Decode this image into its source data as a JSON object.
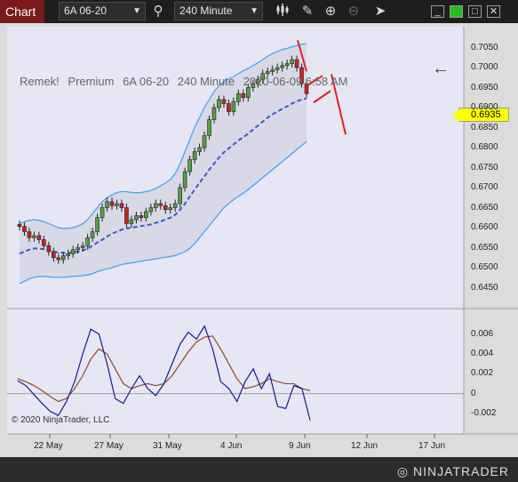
{
  "toolbar": {
    "tab_label": "Chart",
    "instrument": "6A 06-20",
    "interval": "240 Minute"
  },
  "chart": {
    "title_parts": [
      "Remek!",
      "Premium",
      "6A 06-20",
      "240 Minute",
      "2020-06-09 6:58 AM"
    ],
    "last_price": "0.6935",
    "copyright": "© 2020 NinjaTrader, LLC",
    "brand": "NINJATRADER"
  },
  "colors": {
    "background": "#e6e6f5",
    "band_fill": "#d6d6e6",
    "band_line": "#3fa0f0",
    "mid_line": "#3a5ac8",
    "candle": "#222222",
    "candle_up": "#55a040",
    "candle_down": "#cc2222",
    "osc_fast": "#1a1a8c",
    "osc_slow": "#8c4a2a",
    "projection": "#f0f0c8",
    "projection_line": "#e82020"
  },
  "chart_data": [
    {
      "type": "candlestick",
      "title": "",
      "y_ticks": [
        "0.7050",
        "0.7000",
        "0.6950",
        "0.6900",
        "0.6850",
        "0.6800",
        "0.6750",
        "0.6700",
        "0.6650",
        "0.6600",
        "0.6550",
        "0.6500",
        "0.6450"
      ],
      "ylim": [
        0.642,
        0.708
      ],
      "x_ticks": [
        "22 May",
        "27 May",
        "31 May",
        "4 Jun",
        "9 Jun",
        "12 Jun",
        "17 Jun"
      ],
      "close": [
        0.6603,
        0.659,
        0.6575,
        0.658,
        0.657,
        0.6555,
        0.654,
        0.6525,
        0.652,
        0.653,
        0.6535,
        0.6545,
        0.655,
        0.6555,
        0.6575,
        0.659,
        0.6625,
        0.665,
        0.6665,
        0.6655,
        0.666,
        0.665,
        0.661,
        0.662,
        0.663,
        0.6625,
        0.664,
        0.665,
        0.666,
        0.6655,
        0.6645,
        0.665,
        0.666,
        0.67,
        0.674,
        0.677,
        0.679,
        0.68,
        0.683,
        0.687,
        0.69,
        0.692,
        0.691,
        0.689,
        0.6915,
        0.6935,
        0.6925,
        0.695,
        0.696,
        0.697,
        0.6985,
        0.699,
        0.6995,
        0.7,
        0.7005,
        0.701,
        0.702,
        0.7,
        0.696,
        0.6935
      ],
      "upper_band": [
        0.661,
        0.6615,
        0.6618,
        0.662,
        0.6618,
        0.6615,
        0.661,
        0.6605,
        0.66,
        0.6598,
        0.6598,
        0.66,
        0.6604,
        0.661,
        0.662,
        0.6635,
        0.665,
        0.6665,
        0.6675,
        0.6682,
        0.6688,
        0.669,
        0.669,
        0.6688,
        0.6687,
        0.6688,
        0.669,
        0.6693,
        0.6698,
        0.6705,
        0.6712,
        0.672,
        0.6735,
        0.676,
        0.679,
        0.682,
        0.685,
        0.6875,
        0.69,
        0.692,
        0.694,
        0.6955,
        0.6965,
        0.6972,
        0.6978,
        0.6985,
        0.6992,
        0.6998,
        0.7005,
        0.7012,
        0.702,
        0.7028,
        0.7035,
        0.704,
        0.7045,
        0.7048,
        0.7052,
        0.7055,
        0.7058,
        0.706
      ],
      "mid_line": [
        0.6535,
        0.654,
        0.6545,
        0.6548,
        0.6548,
        0.6546,
        0.6543,
        0.654,
        0.6538,
        0.6537,
        0.6537,
        0.6538,
        0.654,
        0.6543,
        0.6548,
        0.6555,
        0.6563,
        0.657,
        0.6578,
        0.6585,
        0.659,
        0.6595,
        0.6598,
        0.66,
        0.6602,
        0.6604,
        0.6606,
        0.6608,
        0.6612,
        0.6616,
        0.662,
        0.6625,
        0.6632,
        0.6645,
        0.666,
        0.6678,
        0.6695,
        0.6712,
        0.6728,
        0.6745,
        0.676,
        0.6775,
        0.6788,
        0.6798,
        0.6808,
        0.6818,
        0.6826,
        0.6835,
        0.6845,
        0.6855,
        0.6865,
        0.6875,
        0.6883,
        0.689,
        0.6897,
        0.6903,
        0.691,
        0.6916,
        0.692,
        0.6923
      ],
      "lower_band": [
        0.646,
        0.6466,
        0.6472,
        0.6476,
        0.6478,
        0.6478,
        0.6477,
        0.6476,
        0.6476,
        0.6476,
        0.6477,
        0.6478,
        0.6479,
        0.648,
        0.6482,
        0.6485,
        0.649,
        0.6494,
        0.6497,
        0.65,
        0.6504,
        0.6508,
        0.651,
        0.6512,
        0.6514,
        0.6516,
        0.6518,
        0.652,
        0.6522,
        0.6524,
        0.6526,
        0.6528,
        0.653,
        0.6535,
        0.654,
        0.6548,
        0.656,
        0.6575,
        0.659,
        0.6605,
        0.662,
        0.6635,
        0.665,
        0.666,
        0.667,
        0.6678,
        0.6686,
        0.6695,
        0.6705,
        0.6715,
        0.6725,
        0.6735,
        0.6745,
        0.6755,
        0.6765,
        0.6775,
        0.6785,
        0.6795,
        0.6805,
        0.6815
      ]
    },
    {
      "type": "line",
      "title": "",
      "y_ticks": [
        "0.006",
        "0.004",
        "0.002",
        "0",
        "-0.002"
      ],
      "ylim": [
        -0.003,
        0.0075
      ],
      "series_fast": [
        0.0013,
        0.0008,
        -0.0001,
        -0.001,
        -0.0018,
        -0.0022,
        -0.0008,
        0.0012,
        0.004,
        0.0065,
        0.006,
        0.003,
        -0.0005,
        -0.001,
        0.0005,
        0.0018,
        0.0005,
        -0.0002,
        0.001,
        0.003,
        0.005,
        0.0062,
        0.0055,
        0.0068,
        0.0045,
        0.0012,
        0.0005,
        -0.0008,
        0.0012,
        0.0025,
        0.0005,
        0.002,
        -0.0013,
        -0.0015,
        0.0008,
        0.0005,
        -0.0027
      ],
      "series_slow": [
        0.0015,
        0.0012,
        0.0008,
        0.0003,
        -0.0003,
        -0.0008,
        -0.0005,
        0.0005,
        0.0018,
        0.0035,
        0.0045,
        0.004,
        0.0025,
        0.001,
        0.0005,
        0.0008,
        0.001,
        0.0008,
        0.001,
        0.0018,
        0.003,
        0.0042,
        0.0052,
        0.0057,
        0.0058,
        0.0045,
        0.003,
        0.0015,
        0.0005,
        0.0007,
        0.001,
        0.0015,
        0.0012,
        0.001,
        0.001,
        0.0005,
        0.0003
      ]
    }
  ]
}
